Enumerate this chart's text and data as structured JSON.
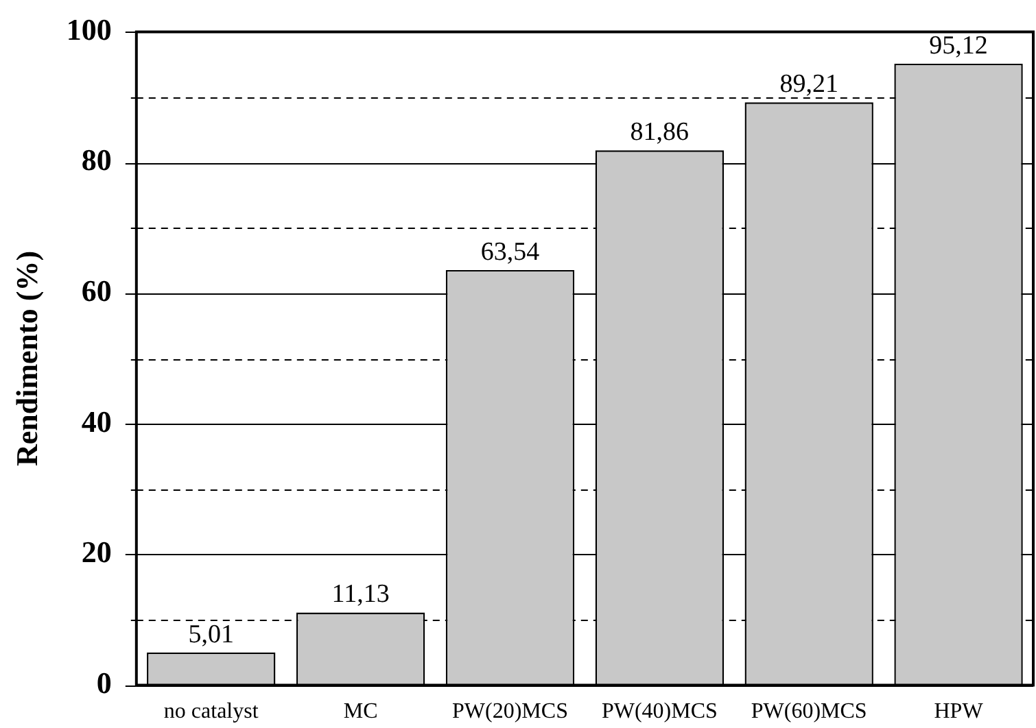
{
  "chart_data": {
    "type": "bar",
    "ylabel": "Rendimento (%)",
    "categories": [
      "no catalyst",
      "MC",
      "PW(20)MCS",
      "PW(40)MCS",
      "PW(60)MCS",
      "HPW"
    ],
    "values": [
      5.01,
      11.13,
      63.54,
      81.86,
      89.21,
      95.12
    ],
    "value_labels": [
      "5,01",
      "11,13",
      "63,54",
      "81,86",
      "89,21",
      "95,12"
    ],
    "color": "#c8c8c8",
    "ylim": [
      0,
      100
    ],
    "yticks": [
      0,
      {
        "value": 10,
        "label": null
      },
      20,
      {
        "value": 30,
        "label": null
      },
      40,
      {
        "value": 50,
        "label": null
      },
      60,
      {
        "value": 70,
        "label": null
      },
      80,
      {
        "value": 90,
        "label": null
      },
      100
    ],
    "grid": true
  }
}
